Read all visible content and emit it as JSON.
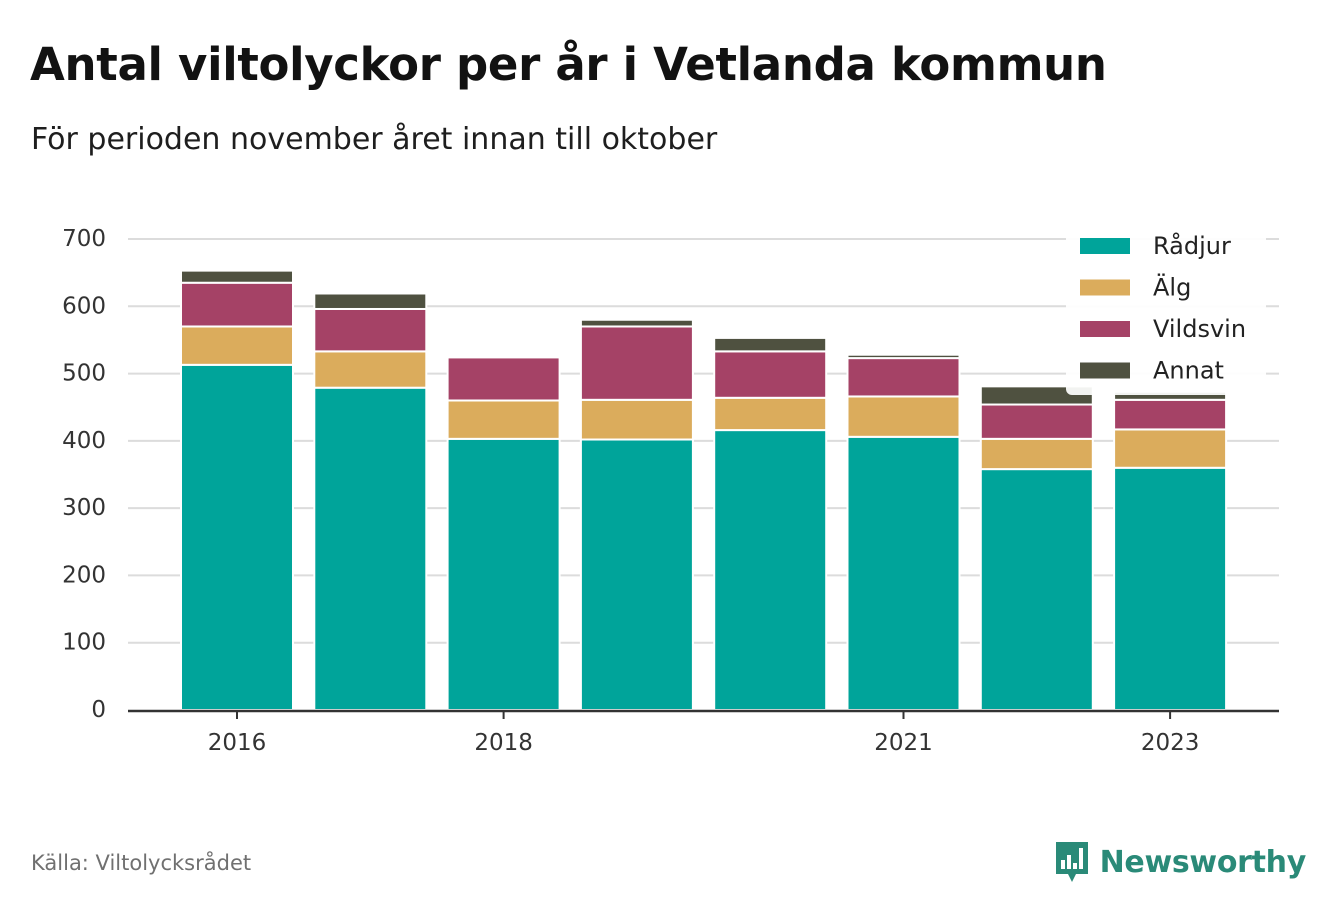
{
  "title": "Antal viltolyckor per år i Vetlanda kommun",
  "subtitle": "För perioden november året innan till oktober",
  "source": "Källa: Viltolycksrådet",
  "brand": {
    "name": "Newsworthy",
    "icon": "bar-chart-speech-bubble-icon",
    "color": "#2a8a78"
  },
  "chart_data": {
    "type": "bar",
    "stacked": true,
    "categories": [
      "2016",
      "2017",
      "2018",
      "2019",
      "2020",
      "2021",
      "2022",
      "2023"
    ],
    "x_tick_labels": [
      "2016",
      "2018",
      "2021",
      "2023"
    ],
    "y_ticks": [
      0,
      100,
      200,
      300,
      400,
      500,
      600,
      700
    ],
    "ylim": [
      0,
      700
    ],
    "grid": true,
    "legend_position": "top-right",
    "series": [
      {
        "name": "Rådjur",
        "color": "#00a49a",
        "values": [
          513,
          479,
          403,
          402,
          416,
          406,
          358,
          360
        ]
      },
      {
        "name": "Älg",
        "color": "#dbac5c",
        "values": [
          57,
          54,
          57,
          59,
          48,
          60,
          45,
          57
        ]
      },
      {
        "name": "Vildsvin",
        "color": "#a54266",
        "values": [
          65,
          63,
          64,
          109,
          69,
          57,
          51,
          44
        ]
      },
      {
        "name": "Annat",
        "color": "#4f5140",
        "values": [
          18,
          23,
          0,
          10,
          20,
          5,
          27,
          12
        ]
      }
    ]
  }
}
